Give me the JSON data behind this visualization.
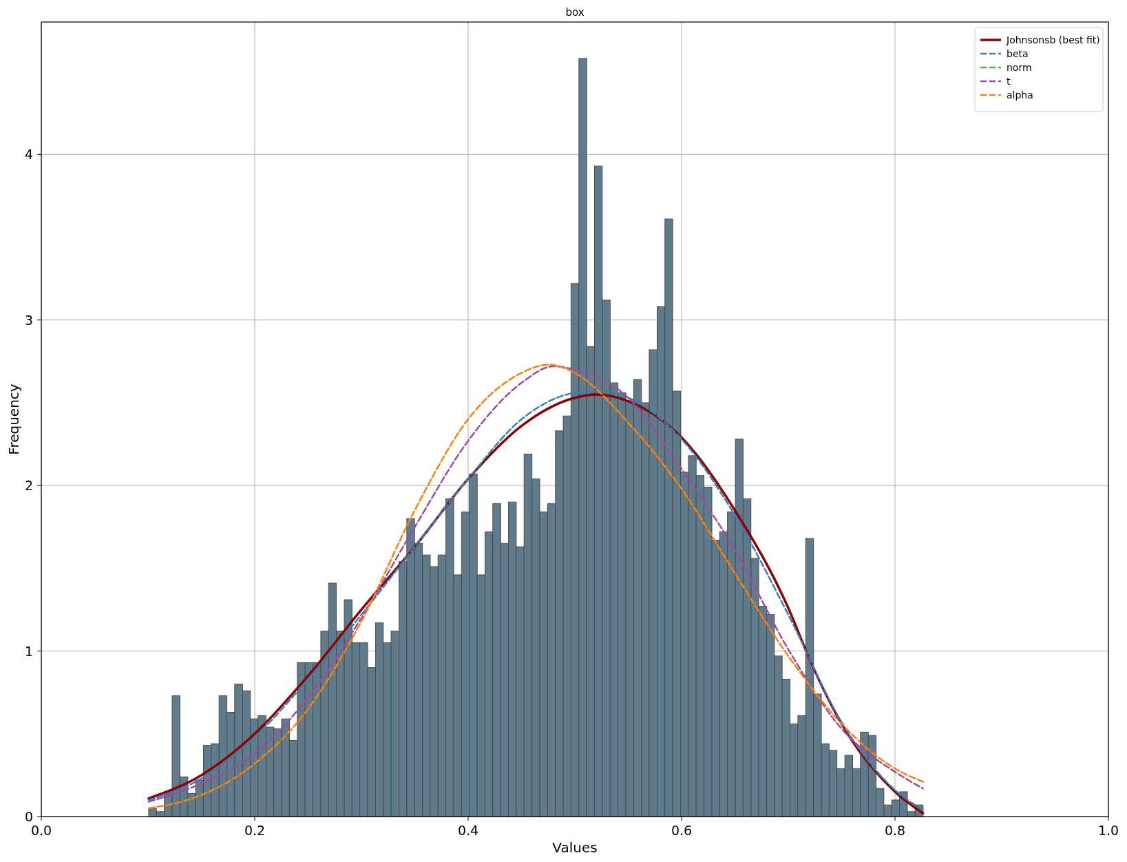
{
  "chart_data": {
    "type": "histogram",
    "title": "box",
    "xlabel": "Values",
    "ylabel": "Frequency",
    "color": "#607b8b",
    "bins": [
      0.1006,
      0.1079,
      0.1153,
      0.1226,
      0.1299,
      0.1373,
      0.1446,
      0.1519,
      0.1592,
      0.1666,
      0.1739,
      0.1812,
      0.1886,
      0.1959,
      0.2032,
      0.2106,
      0.2179,
      0.2252,
      0.2325,
      0.2399,
      0.2472,
      0.2545,
      0.2619,
      0.2692,
      0.2765,
      0.2839,
      0.2912,
      0.2985,
      0.3058,
      0.3132,
      0.3205,
      0.3278,
      0.3352,
      0.3425,
      0.3498,
      0.3572,
      0.3645,
      0.3718,
      0.3791,
      0.3865,
      0.3938,
      0.4011,
      0.4085,
      0.4158,
      0.4231,
      0.4305,
      0.4378,
      0.4451,
      0.4524,
      0.4598,
      0.4671,
      0.4744,
      0.4818,
      0.4891,
      0.4964,
      0.5038,
      0.5111,
      0.5184,
      0.5257,
      0.5331,
      0.5404,
      0.5477,
      0.5551,
      0.5624,
      0.5697,
      0.5771,
      0.5844,
      0.5917,
      0.599,
      0.6064,
      0.6137,
      0.621,
      0.6284,
      0.6357,
      0.643,
      0.6504,
      0.6577,
      0.665,
      0.6723,
      0.6797,
      0.687,
      0.6943,
      0.7017,
      0.709,
      0.7163,
      0.7237,
      0.731,
      0.7383,
      0.7456,
      0.753,
      0.7603,
      0.7676,
      0.775,
      0.7823,
      0.7896,
      0.797,
      0.8043,
      0.8116,
      0.8189,
      0.8263
    ],
    "values": [
      0.05,
      0.03,
      0.15,
      0.73,
      0.24,
      0.14,
      0.22,
      0.43,
      0.44,
      0.73,
      0.63,
      0.8,
      0.76,
      0.59,
      0.61,
      0.54,
      0.53,
      0.59,
      0.46,
      0.93,
      0.93,
      0.93,
      1.12,
      1.41,
      1.12,
      1.31,
      1.05,
      1.05,
      0.9,
      1.17,
      1.05,
      1.12,
      1.54,
      1.8,
      1.65,
      1.58,
      1.51,
      1.58,
      1.92,
      1.46,
      1.84,
      2.07,
      1.46,
      1.72,
      1.89,
      1.65,
      1.9,
      1.63,
      2.19,
      2.04,
      1.84,
      1.89,
      2.33,
      2.42,
      3.22,
      4.58,
      2.84,
      3.93,
      3.12,
      2.62,
      2.56,
      2.51,
      2.64,
      2.5,
      2.82,
      3.08,
      3.61,
      2.57,
      2.08,
      2.18,
      2.06,
      1.99,
      1.67,
      1.72,
      1.84,
      2.28,
      1.92,
      1.56,
      1.27,
      1.22,
      0.97,
      0.83,
      0.56,
      0.61,
      1.68,
      0.74,
      0.44,
      0.4,
      0.29,
      0.37,
      0.29,
      0.51,
      0.49,
      0.17,
      0.07,
      0.1,
      0.15,
      0.03,
      0.07
    ],
    "series": [
      {
        "name": "Johnsonsb (best fit)",
        "type": "line",
        "line_style": "solid",
        "color": "#8b0000",
        "x": [
          0.1006,
          0.15,
          0.2,
          0.25,
          0.3,
          0.35,
          0.4,
          0.45,
          0.5,
          0.52,
          0.55,
          0.6,
          0.65,
          0.7,
          0.72,
          0.75,
          0.8,
          0.8263
        ],
        "values": [
          0.11,
          0.25,
          0.5,
          0.85,
          1.25,
          1.63,
          2.04,
          2.36,
          2.53,
          2.55,
          2.51,
          2.29,
          1.85,
          1.26,
          0.95,
          0.56,
          0.15,
          0.02
        ]
      },
      {
        "name": "beta",
        "type": "line",
        "line_style": "dashed",
        "color": "#3a7db6",
        "x": [
          0.1006,
          0.15,
          0.2,
          0.25,
          0.3,
          0.35,
          0.4,
          0.45,
          0.5,
          0.52,
          0.55,
          0.6,
          0.65,
          0.7,
          0.75,
          0.8,
          0.8263
        ],
        "values": [
          0.1,
          0.23,
          0.48,
          0.83,
          1.22,
          1.63,
          2.04,
          2.4,
          2.56,
          2.57,
          2.53,
          2.28,
          1.82,
          1.22,
          0.57,
          0.16,
          0.04
        ]
      },
      {
        "name": "norm",
        "type": "line",
        "line_style": "dashed",
        "color": "#4daf4a"
      },
      {
        "name": "t",
        "type": "line",
        "line_style": "dashed",
        "color": "#984ea3",
        "x": [
          0.1006,
          0.15,
          0.2,
          0.25,
          0.3,
          0.35,
          0.4,
          0.45,
          0.48,
          0.5,
          0.55,
          0.6,
          0.65,
          0.7,
          0.75,
          0.8,
          0.8263
        ],
        "values": [
          0.09,
          0.2,
          0.38,
          0.72,
          1.2,
          1.75,
          2.27,
          2.62,
          2.72,
          2.7,
          2.53,
          2.1,
          1.61,
          1.01,
          0.53,
          0.27,
          0.17
        ]
      },
      {
        "name": "alpha",
        "type": "line",
        "line_style": "dashed",
        "color": "#ff7f0e",
        "x": [
          0.1006,
          0.15,
          0.2,
          0.25,
          0.3,
          0.35,
          0.4,
          0.45,
          0.475,
          0.5,
          0.55,
          0.6,
          0.65,
          0.7,
          0.75,
          0.8,
          0.8263
        ],
        "values": [
          0.05,
          0.13,
          0.32,
          0.65,
          1.18,
          1.85,
          2.4,
          2.68,
          2.73,
          2.68,
          2.38,
          1.98,
          1.47,
          0.97,
          0.56,
          0.29,
          0.21
        ]
      }
    ],
    "xlim": [
      0,
      1
    ],
    "xticks": [
      {
        "value": 0,
        "label": "0.0"
      },
      {
        "value": 0.2,
        "label": "0.2"
      },
      {
        "value": 0.4,
        "label": "0.4"
      },
      {
        "value": 0.6,
        "label": "0.6"
      },
      {
        "value": 0.8,
        "label": "0.8"
      },
      {
        "value": 1,
        "label": "1.0"
      }
    ],
    "ylim": [
      0,
      4.8
    ],
    "yticks": [
      0,
      1,
      2,
      3,
      4
    ],
    "grid": true,
    "legend": "top right"
  }
}
